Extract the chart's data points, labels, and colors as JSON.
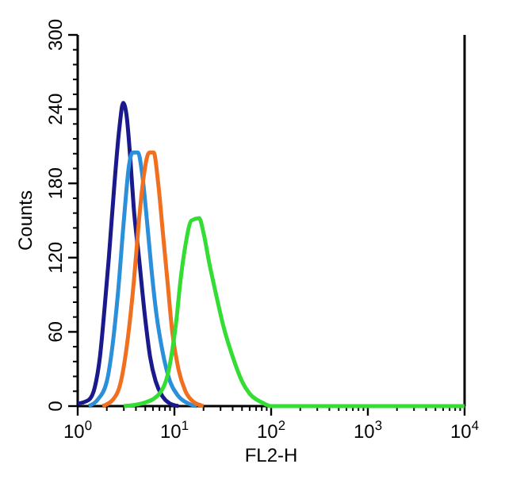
{
  "chart_data": {
    "type": "line",
    "xlabel": "FL2-H",
    "ylabel": "Counts",
    "log": "x",
    "xlim": [
      1,
      10000
    ],
    "ylim": [
      0,
      300
    ],
    "xticks": [
      {
        "value": 1,
        "label": "10$^{0}$"
      },
      {
        "value": 10,
        "label": "10$^{1}$"
      },
      {
        "value": 100,
        "label": "10$^{2}$"
      },
      {
        "value": 1000,
        "label": "10$^{3}$"
      },
      {
        "value": 10000,
        "label": "10$^{4}$"
      }
    ],
    "yticks": [
      0,
      60,
      120,
      180,
      240,
      300
    ],
    "grid": false,
    "marker": "none",
    "line_style": "solid",
    "series": [
      {
        "color": "#1a1a8c",
        "x": [
          1,
          1.3,
          1.5,
          1.7,
          1.9,
          2.1,
          2.4,
          2.7,
          2.95,
          3.2,
          3.5,
          3.8,
          4.3,
          5,
          5.6,
          6.4,
          7.5,
          9,
          11
        ],
        "values": [
          2,
          5,
          15,
          40,
          80,
          120,
          180,
          225,
          245,
          235,
          200,
          160,
          120,
          70,
          40,
          20,
          8,
          2,
          0
        ]
      },
      {
        "color": "#2b8fd9",
        "x": [
          1.3,
          1.6,
          2,
          2.3,
          2.6,
          3,
          3.4,
          3.7,
          4.2,
          4.6,
          5.2,
          5.8,
          6.5,
          7.5,
          9,
          11,
          14,
          17
        ],
        "values": [
          0,
          5,
          20,
          50,
          90,
          150,
          195,
          205,
          205,
          190,
          150,
          110,
          75,
          45,
          20,
          8,
          2,
          0
        ]
      },
      {
        "color": "#f07020",
        "x": [
          1.8,
          2.3,
          2.8,
          3.3,
          3.8,
          4.3,
          4.8,
          5.5,
          6.1,
          6.8,
          7.6,
          8.5,
          9.5,
          11,
          13,
          16,
          20
        ],
        "values": [
          0,
          5,
          20,
          55,
          100,
          150,
          185,
          205,
          205,
          180,
          140,
          100,
          60,
          30,
          12,
          3,
          0
        ]
      },
      {
        "color": "#33dd33",
        "x": [
          3,
          5,
          7,
          8.5,
          9.5,
          10.5,
          11.5,
          13,
          15,
          18,
          20,
          23,
          27,
          32,
          40,
          50,
          60,
          80,
          100,
          10000
        ],
        "values": [
          0,
          3,
          10,
          25,
          45,
          70,
          100,
          130,
          150,
          152,
          140,
          115,
          90,
          65,
          40,
          20,
          10,
          3,
          0,
          0
        ]
      }
    ]
  }
}
